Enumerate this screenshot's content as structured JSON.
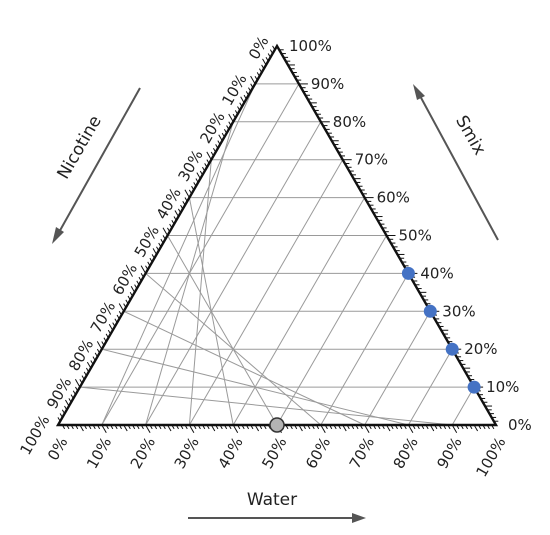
{
  "chart_data": {
    "type": "scatter",
    "subtype": "ternary",
    "axes": {
      "left": {
        "title": "Nicotine"
      },
      "right": {
        "title": "Smix"
      },
      "bottom": {
        "title": "Water"
      }
    },
    "tick_labels": [
      "0%",
      "10%",
      "20%",
      "30%",
      "40%",
      "50%",
      "60%",
      "70%",
      "80%",
      "90%",
      "100%"
    ],
    "grid": true,
    "grid_step": 10,
    "colors": {
      "grid": "#9a9a9a",
      "frame": "#111111",
      "arrow": "#555555",
      "point_blue": "#4472c4",
      "point_gray": "#b3b3b3"
    },
    "points": [
      {
        "smix": 40,
        "water": 60,
        "nicotine": 0,
        "color": "blue"
      },
      {
        "smix": 30,
        "water": 70,
        "nicotine": 0,
        "color": "blue"
      },
      {
        "smix": 20,
        "water": 80,
        "nicotine": 0,
        "color": "blue"
      },
      {
        "smix": 10,
        "water": 90,
        "nicotine": 0,
        "color": "blue"
      },
      {
        "smix": 0,
        "water": 50,
        "nicotine": 50,
        "color": "gray"
      }
    ]
  }
}
